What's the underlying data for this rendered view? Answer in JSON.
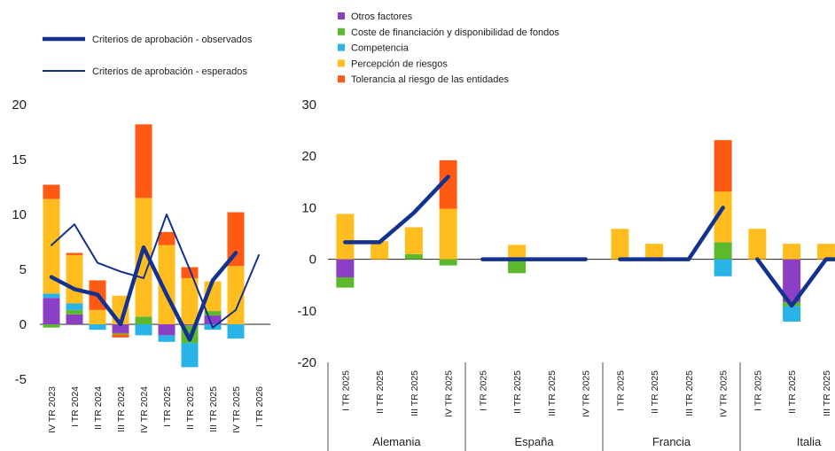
{
  "colors": {
    "otros": "#8b3fc4",
    "coste": "#5cb82d",
    "competencia": "#2ab3e6",
    "percepcion": "#ffbd1f",
    "tolerancia": "#ff5a14",
    "line": "#13318f"
  },
  "legend_left": [
    {
      "key": "observed",
      "label": "Criterios de aprobación - observados"
    },
    {
      "key": "expected",
      "label": "Criterios de aprobación - esperados"
    }
  ],
  "legend_right": [
    {
      "key": "otros",
      "label": "Otros factores"
    },
    {
      "key": "coste",
      "label": "Coste de financiación y disponibilidad de fondos"
    },
    {
      "key": "competencia",
      "label": "Competencia"
    },
    {
      "key": "percepcion",
      "label": "Percepción de riesgos"
    },
    {
      "key": "tolerancia",
      "label": "Tolerancia al riesgo de las entidades"
    }
  ],
  "chart_data": [
    {
      "type": "bar",
      "stacked": true,
      "categories": [
        "IV TR 2023",
        "I TR 2024",
        "II TR 2024",
        "III TR 2024",
        "IV TR 2024",
        "I TR 2025",
        "II TR 2025",
        "III TR 2025",
        "IV TR 2025",
        "I TR 2026"
      ],
      "ylim": [
        -5,
        20
      ],
      "yticks": [
        "20",
        "15",
        "10",
        "5",
        "0",
        "-5"
      ],
      "series": [
        {
          "key": "otros",
          "values": [
            2.4,
            0.9,
            0.0,
            -0.8,
            0.0,
            -1.0,
            -0.1,
            0.8,
            0.0,
            null
          ]
        },
        {
          "key": "coste",
          "values": [
            -0.3,
            0.4,
            0.0,
            -0.1,
            0.7,
            0.0,
            -1.6,
            0.4,
            0.0,
            null
          ]
        },
        {
          "key": "competencia",
          "values": [
            0.4,
            0.6,
            -0.5,
            0.0,
            -1.0,
            -0.6,
            -2.2,
            -0.5,
            -1.3,
            null
          ]
        },
        {
          "key": "percepcion",
          "values": [
            8.6,
            4.4,
            1.3,
            2.6,
            10.8,
            7.2,
            4.2,
            2.7,
            5.3,
            null
          ]
        },
        {
          "key": "tolerancia",
          "values": [
            1.3,
            0.2,
            2.7,
            -0.3,
            6.7,
            1.2,
            1.0,
            0.0,
            4.9,
            null
          ]
        }
      ],
      "lines": [
        {
          "key": "observed",
          "values": [
            4.3,
            3.2,
            2.7,
            0.0,
            7.0,
            2.7,
            -1.4,
            4.0,
            6.5,
            null
          ]
        },
        {
          "key": "expected",
          "values": [
            7.2,
            9.1,
            5.6,
            4.8,
            4.2,
            10.0,
            5.0,
            -0.3,
            1.3,
            6.3
          ]
        }
      ]
    },
    {
      "type": "bar",
      "stacked": true,
      "groups": [
        "Alemania",
        "España",
        "Francia",
        "Italia"
      ],
      "categories": [
        "I TR 2025",
        "II TR 2025",
        "III TR 2025",
        "IV TR 2025"
      ],
      "ylim": [
        -20,
        30
      ],
      "yticks": [
        "30",
        "20",
        "10",
        "0",
        "-10",
        "-20"
      ],
      "data": {
        "Alemania": {
          "otros": [
            -3.5,
            0,
            0,
            0
          ],
          "coste": [
            -2.0,
            0,
            1.0,
            -1.2
          ],
          "competencia": [
            0,
            0,
            0,
            0
          ],
          "percepcion": [
            8.8,
            3.5,
            5.2,
            9.8
          ],
          "tolerancia": [
            0,
            0,
            0,
            9.4
          ],
          "observed": [
            3.3,
            3.3,
            9.0,
            16.0
          ]
        },
        "España": {
          "otros": [
            0,
            0,
            0,
            0
          ],
          "coste": [
            0,
            -2.7,
            0,
            0
          ],
          "competencia": [
            0,
            0,
            0,
            0
          ],
          "percepcion": [
            0,
            2.8,
            0,
            0
          ],
          "tolerancia": [
            0,
            0,
            0,
            0
          ],
          "observed": [
            0,
            0,
            0,
            0
          ]
        },
        "Francia": {
          "otros": [
            0,
            0,
            0,
            0
          ],
          "coste": [
            0,
            0,
            0,
            3.3
          ],
          "competencia": [
            0,
            0,
            0,
            -3.3
          ],
          "percepcion": [
            5.9,
            3.0,
            0,
            9.8
          ],
          "tolerancia": [
            0,
            0,
            0,
            10.0
          ],
          "observed": [
            0,
            0,
            0,
            10.0
          ]
        },
        "Italia": {
          "otros": [
            0,
            -8.3,
            0,
            0
          ],
          "coste": [
            0,
            -0.8,
            0,
            0
          ],
          "competencia": [
            0,
            -3.0,
            0,
            0
          ],
          "percepcion": [
            5.9,
            3.0,
            3.0,
            0
          ],
          "tolerancia": [
            0,
            0,
            0,
            0
          ],
          "observed": [
            0,
            -9.0,
            0,
            0
          ]
        }
      }
    }
  ]
}
